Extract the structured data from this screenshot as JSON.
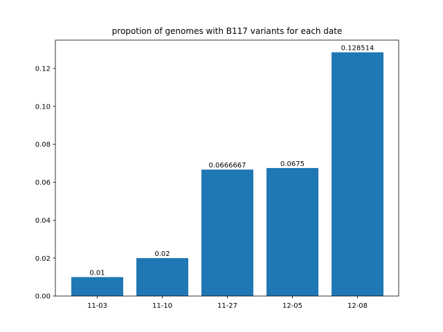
{
  "chart_data": {
    "type": "bar",
    "title": "propotion of genomes with B117 variants for each date",
    "xlabel": "",
    "ylabel": "",
    "categories": [
      "11-03",
      "11-10",
      "11-27",
      "12-05",
      "12-08"
    ],
    "values": [
      0.01,
      0.02,
      0.0666667,
      0.0675,
      0.128514
    ],
    "data_labels": [
      "0.01",
      "0.02",
      "0.0666667",
      "0.0675",
      "0.128514"
    ],
    "ylim": [
      0,
      0.13494
    ],
    "yticks": [
      0,
      0.02,
      0.04,
      0.06,
      0.08,
      0.1,
      0.12
    ],
    "ytick_labels": [
      "0.00",
      "0.02",
      "0.04",
      "0.06",
      "0.08",
      "0.10",
      "0.12"
    ],
    "grid": false,
    "legend": "none",
    "bar_color": "#1f77b4"
  }
}
